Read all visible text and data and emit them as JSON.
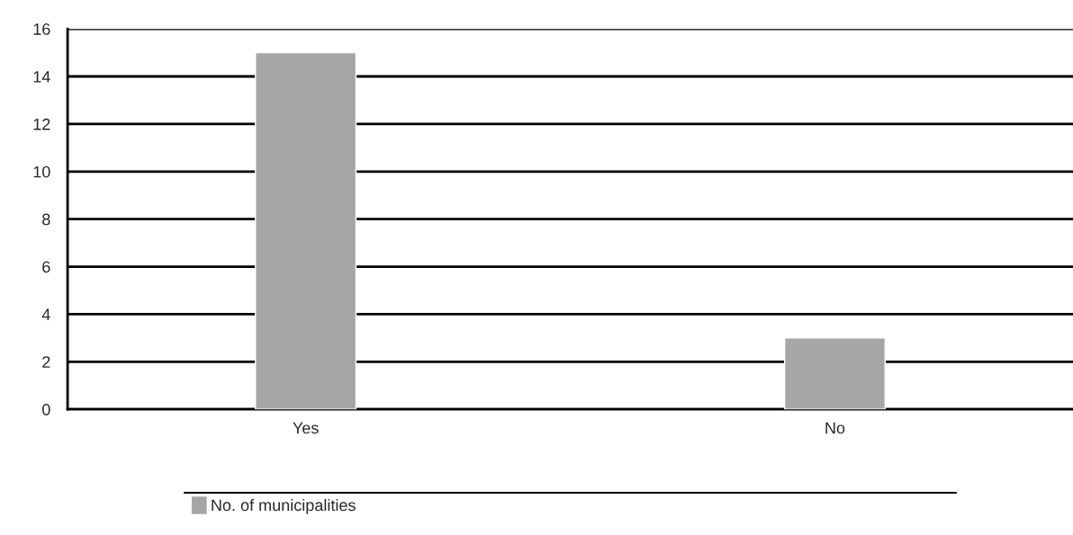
{
  "chart_data": {
    "type": "bar",
    "categories": [
      "Yes",
      "No"
    ],
    "series": [
      {
        "name": "No. of municipalities",
        "color": "#a6a6a6",
        "values": [
          15,
          3
        ]
      }
    ],
    "ylim": [
      0,
      16
    ],
    "yticks": [
      0,
      2,
      4,
      6,
      8,
      10,
      12,
      14,
      16
    ],
    "grid": "y",
    "legend": "bottom"
  }
}
